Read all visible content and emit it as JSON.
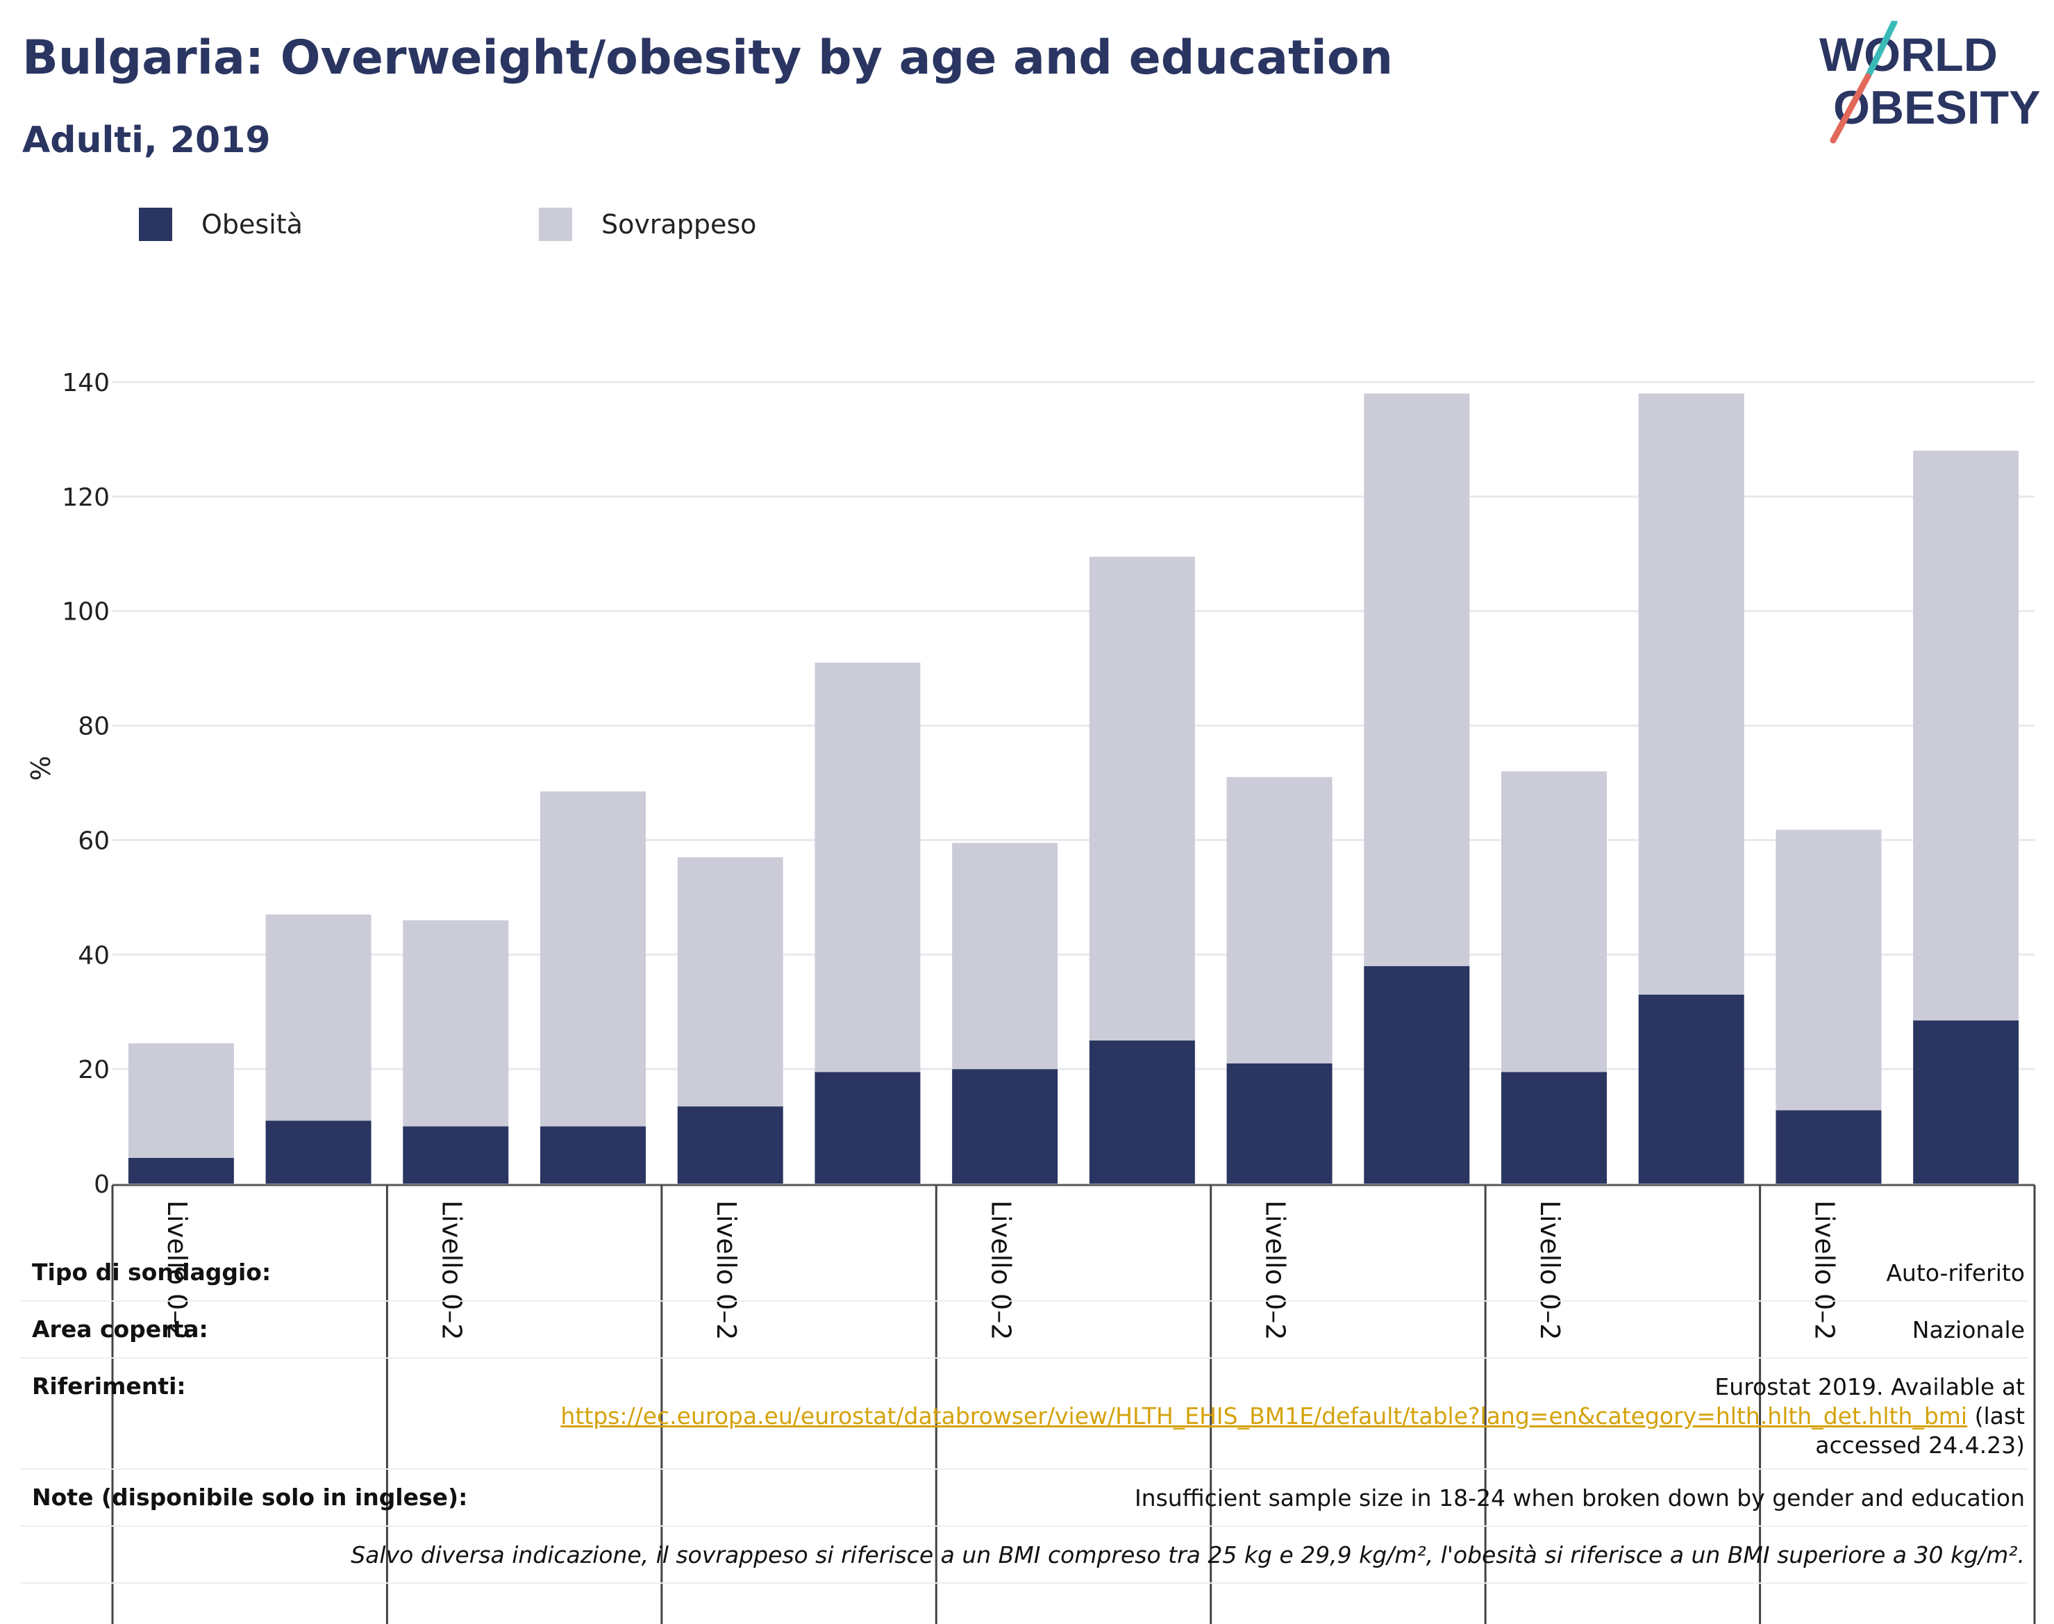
{
  "header": {
    "title": "Bulgaria: Overweight/obesity by age and education",
    "subtitle": "Adulti, 2019"
  },
  "logo": {
    "line1": "WORLD",
    "line2": "OBESITY"
  },
  "colors": {
    "obesity": "#2a3561",
    "overweight": "#cbccd8",
    "grid": "#e8e9ef",
    "link": "#d4a20a"
  },
  "chart_data": {
    "type": "bar",
    "stacked": true,
    "ylabel": "%",
    "ylim": [
      0,
      140
    ],
    "yticks": [
      0,
      20,
      40,
      60,
      80,
      100,
      120,
      140
    ],
    "grid": true,
    "legend_position": "top-left",
    "group_labels": [
      "Livello 0–2",
      "Livello 0–2",
      "Livello 0–2",
      "Livello 0–2",
      "Livello 0–2",
      "Livello 0–2",
      "Livello 0–2"
    ],
    "series": [
      {
        "name": "Obesità",
        "color": "#2a3561",
        "values": [
          4.5,
          11,
          10,
          10,
          13.5,
          19.5,
          20,
          25,
          21,
          38,
          19.5,
          33,
          12.8,
          28.5
        ]
      },
      {
        "name": "Sovrappeso",
        "color": "#cbccd8",
        "values": [
          20,
          36,
          36,
          58.5,
          43.5,
          71.5,
          39.5,
          84.5,
          50,
          100,
          52.5,
          105,
          49,
          99.5
        ]
      }
    ]
  },
  "info": {
    "survey_label": "Tipo di sondaggio:",
    "survey_value": "Auto-riferito",
    "area_label": "Area coperta:",
    "area_value": "Nazionale",
    "refs_label": "Riferimenti:",
    "refs_line1": "Eurostat 2019. Available at",
    "refs_link": "https://ec.europa.eu/eurostat/databrowser/view/HLTH_EHIS_BM1E/default/table?lang=en&category=hlth.hlth_det.hlth_bmi",
    "refs_after_link": " (last",
    "refs_line3": "accessed 24.4.23)",
    "notes_label": "Note (disponibile solo in inglese):",
    "notes_value": "Insufficient sample size in 18-24 when broken down by gender and education",
    "footnote": "Salvo diversa indicazione, il sovrappeso si riferisce a un BMI compreso tra 25 kg e 29,9 kg/m², l'obesità si riferisce a un BMI superiore a 30 kg/m²."
  }
}
